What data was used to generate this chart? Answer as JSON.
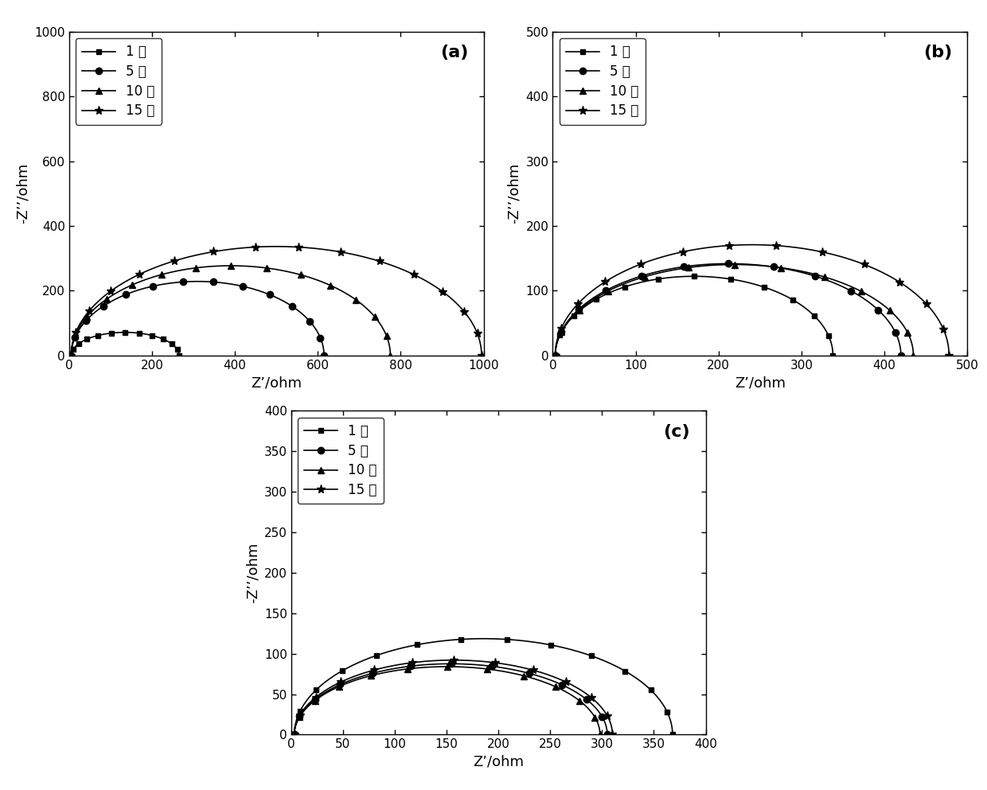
{
  "legend_labels": [
    "1 天",
    "5 天",
    "10 天",
    "15 天"
  ],
  "markers": [
    "s",
    "o",
    "^",
    "*"
  ],
  "marker_sizes": [
    5,
    6,
    6,
    8
  ],
  "panel_a": {
    "xlim": [
      0,
      1000
    ],
    "ylim": [
      0,
      1000
    ],
    "xlabel": "Z’/ohm",
    "ylabel": "-Z’’/ohm",
    "xticks": [
      0,
      200,
      400,
      600,
      800,
      1000
    ],
    "yticks": [
      0,
      200,
      400,
      600,
      800,
      1000
    ],
    "panel_label": "(a)",
    "series": [
      {
        "R0": 5,
        "Rct": 265,
        "depression": 0.55,
        "n_markers": 13
      },
      {
        "R0": 5,
        "Rct": 615,
        "depression": 0.75,
        "n_markers": 14
      },
      {
        "R0": 5,
        "Rct": 775,
        "depression": 0.72,
        "n_markers": 15
      },
      {
        "R0": 5,
        "Rct": 995,
        "depression": 0.68,
        "n_markers": 16
      }
    ]
  },
  "panel_b": {
    "xlim": [
      0,
      500
    ],
    "ylim": [
      0,
      500
    ],
    "xlabel": "Z’/ohm",
    "ylabel": "-Z’’/ohm",
    "xticks": [
      0,
      100,
      200,
      300,
      400,
      500
    ],
    "yticks": [
      0,
      100,
      200,
      300,
      400,
      500
    ],
    "panel_label": "(b)",
    "series": [
      {
        "R0": 3,
        "Rct": 338,
        "depression": 0.73,
        "n_markers": 13
      },
      {
        "R0": 3,
        "Rct": 420,
        "depression": 0.68,
        "n_markers": 13
      },
      {
        "R0": 3,
        "Rct": 435,
        "depression": 0.65,
        "n_markers": 13
      },
      {
        "R0": 3,
        "Rct": 478,
        "depression": 0.72,
        "n_markers": 14
      }
    ]
  },
  "panel_c": {
    "xlim": [
      0,
      400
    ],
    "ylim": [
      0,
      400
    ],
    "xlabel": "Z’/ohm",
    "ylabel": "-Z’’/ohm",
    "xticks": [
      0,
      50,
      100,
      150,
      200,
      250,
      300,
      350,
      400
    ],
    "yticks": [
      0,
      50,
      100,
      150,
      200,
      250,
      300,
      350,
      400
    ],
    "panel_label": "(c)",
    "series": [
      {
        "R0": 3,
        "Rct": 368,
        "depression": 0.65,
        "n_markers": 14
      },
      {
        "R0": 3,
        "Rct": 305,
        "depression": 0.58,
        "n_markers": 13
      },
      {
        "R0": 3,
        "Rct": 298,
        "depression": 0.57,
        "n_markers": 13
      },
      {
        "R0": 3,
        "Rct": 310,
        "depression": 0.6,
        "n_markers": 13
      }
    ]
  },
  "line_color": "#000000",
  "linewidth": 1.2,
  "label_fontsize": 13,
  "tick_fontsize": 11,
  "legend_fontsize": 12,
  "panel_label_fontsize": 16
}
